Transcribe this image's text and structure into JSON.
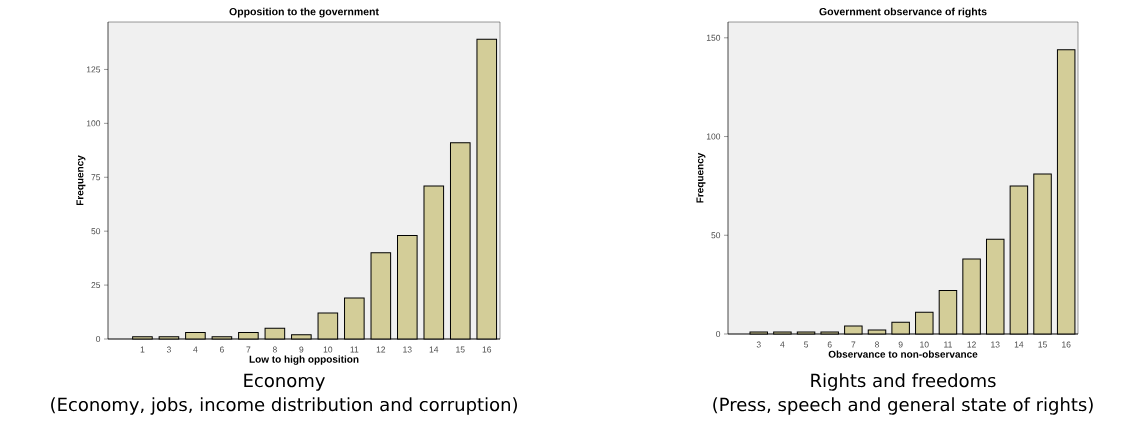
{
  "chart_data": [
    {
      "type": "bar",
      "title": "Opposition to the government",
      "xlabel": "Low to high opposition",
      "ylabel": "Frequency",
      "categories": [
        "1",
        "3",
        "4",
        "6",
        "7",
        "8",
        "9",
        "10",
        "11",
        "12",
        "13",
        "14",
        "15",
        "16"
      ],
      "values": [
        1,
        1,
        3,
        1,
        3,
        5,
        2,
        12,
        19,
        40,
        48,
        71,
        91,
        139
      ],
      "color": "#d3cd98",
      "ylim": [
        0,
        147
      ],
      "yticks": [
        0,
        25,
        50,
        75,
        100,
        125
      ],
      "grid": false,
      "annotations": [
        "Economy",
        "(Economy, jobs, income distribution and corruption)"
      ]
    },
    {
      "type": "bar",
      "title": "Government observance of rights",
      "xlabel": "Observance to non-observance",
      "ylabel": "Frequency",
      "categories": [
        "3",
        "4",
        "5",
        "6",
        "7",
        "8",
        "9",
        "10",
        "11",
        "12",
        "13",
        "14",
        "15",
        "16"
      ],
      "values": [
        1,
        1,
        1,
        1,
        4,
        2,
        6,
        11,
        22,
        38,
        48,
        75,
        81,
        144
      ],
      "color": "#d3cd98",
      "ylim": [
        0,
        158
      ],
      "yticks": [
        0,
        50,
        100,
        150
      ],
      "grid": false,
      "annotations": [
        "Rights and freedoms",
        "(Press, speech and general state of rights)"
      ]
    }
  ]
}
